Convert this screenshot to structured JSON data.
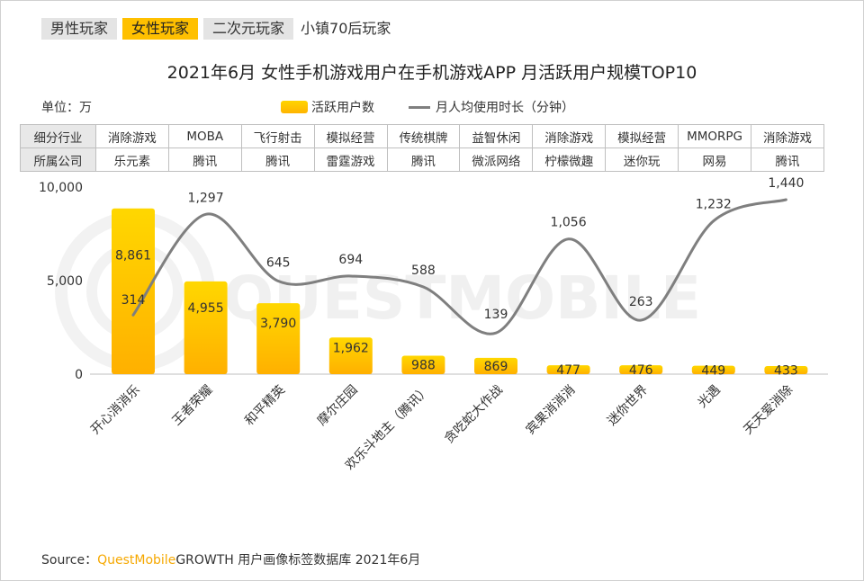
{
  "tabs": [
    {
      "label": "男性玩家",
      "active": false
    },
    {
      "label": "女性玩家",
      "active": true
    },
    {
      "label": "二次元玩家",
      "active": false
    },
    {
      "label": "小镇70后玩家",
      "active": false
    }
  ],
  "title": "2021年6月 女性手机游戏用户在手机游戏APP 月活跃用户规模TOP10",
  "unit_label": "单位：万",
  "watermark": "QUESTMOBILE",
  "table": {
    "row1_header": "细分行业",
    "row2_header": "所属公司",
    "industries": [
      "消除游戏",
      "MOBA",
      "飞行射击",
      "模拟经营",
      "传统棋牌",
      "益智休闲",
      "消除游戏",
      "模拟经营",
      "MMORPG",
      "消除游戏"
    ],
    "companies": [
      "乐元素",
      "腾讯",
      "腾讯",
      "雷霆游戏",
      "腾讯",
      "微派网络",
      "柠檬微趣",
      "迷你玩",
      "网易",
      "腾讯"
    ]
  },
  "chart_data": {
    "type": "bar",
    "categories": [
      "开心消消乐",
      "王者荣耀",
      "和平精英",
      "摩尔庄园",
      "欢乐斗地主（腾讯）",
      "贪吃蛇大作战",
      "宾果消消消",
      "迷你世界",
      "光遇",
      "天天爱消除"
    ],
    "series": [
      {
        "name": "活跃用户数",
        "type": "bar",
        "values": [
          8861,
          4955,
          3790,
          1962,
          988,
          869,
          477,
          476,
          449,
          433
        ],
        "labels": [
          "8,861",
          "4,955",
          "3,790",
          "1,962",
          "988",
          "869",
          "477",
          "476",
          "449",
          "433"
        ]
      },
      {
        "name": "月人均使用时长（分钟）",
        "type": "line",
        "values": [
          314,
          1297,
          645,
          694,
          588,
          139,
          1056,
          263,
          1232,
          1440
        ],
        "labels": [
          "314",
          "1,297",
          "645",
          "694",
          "588",
          "139",
          "1,056",
          "263",
          "1,232",
          "1,440"
        ]
      }
    ],
    "y_ticks": [
      "10,000",
      "5,000",
      "0"
    ],
    "ylim": [
      0,
      10000
    ],
    "colors": {
      "bar_top": "#ffd700",
      "bar_bottom": "#ffb000",
      "line": "#7f7f7f"
    },
    "legend_position": "top-center"
  },
  "source": {
    "prefix": "Source：",
    "brand": "QuestMobile",
    "rest": "GROWTH 用户画像标签数据库 2021年6月"
  }
}
